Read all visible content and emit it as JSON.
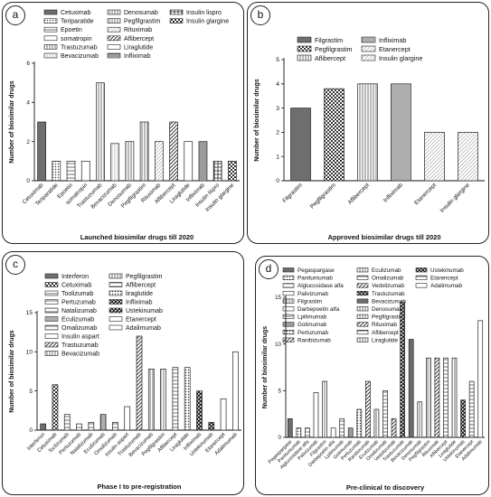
{
  "chart_data": [
    {
      "type": "bar",
      "panel_label": "a",
      "title": "",
      "xlabel": "Launched biosimilar drugs till 2020",
      "ylabel": "Number of biosimilar drugs",
      "ylim": [
        0,
        6
      ],
      "yticks": [
        0,
        2,
        4,
        6
      ],
      "grid": false,
      "legend_position": "top",
      "categories": [
        "Cetuximab",
        "Teriparatide",
        "Epoetin",
        "somatropin",
        "Trastuzumab",
        "Bevacizumab",
        "Denosumab",
        "Pegfilgrastim",
        "Rituximab",
        "Aflibercept",
        "Liraglutide",
        "Infliximab",
        "Insulin lispro",
        "Insulin glargine"
      ],
      "values": [
        3,
        1,
        1,
        1,
        5,
        1.9,
        2,
        3,
        2,
        3,
        2,
        2,
        1,
        1
      ],
      "patterns": [
        "solid-gray",
        "dots",
        "hlines",
        "none",
        "vlines",
        "vlines-light",
        "vlines",
        "vlines",
        "diag-light",
        "diag",
        "none",
        "hlines-dense",
        "grid",
        "check"
      ],
      "legend": [
        "Cetuximab",
        "Teriparatide",
        "Epoetin",
        "somatropin",
        "Trastuzumab",
        "Bevacizumab",
        "Denosumab",
        "Pegfilgrastim",
        "Rituximab",
        "Aflibercept",
        "Liraglutide",
        "Infliximab",
        "Insulin lispro",
        "Insulin glargine"
      ]
    },
    {
      "type": "bar",
      "panel_label": "b",
      "title": "",
      "xlabel": "Approved biosimilar drugs till 2020",
      "ylabel": "Number of biosimilar drugs",
      "ylim": [
        0,
        5
      ],
      "yticks": [
        0,
        1,
        2,
        3,
        4,
        5
      ],
      "grid": false,
      "legend_position": "top",
      "categories": [
        "Filgrastim",
        "Pegfilgrastim",
        "Aflibercept",
        "Infliximab",
        "Etanercept",
        "Insulin glargine"
      ],
      "values": [
        3,
        3.8,
        4,
        4,
        2,
        2
      ],
      "patterns": [
        "solid-gray",
        "check",
        "vlines",
        "vlines-dense",
        "diag-light",
        "diag-light"
      ],
      "legend": [
        "Filgrastim",
        "Pegfilgrastim",
        "Aflibercept",
        "Infliximab",
        "Etanercept",
        "Insulin glargine"
      ]
    },
    {
      "type": "bar",
      "panel_label": "c",
      "title": "",
      "xlabel": "Phase I to pre-registration",
      "ylabel": "Number of biosimilar drugs",
      "ylim": [
        0,
        15
      ],
      "yticks": [
        0,
        5,
        10,
        15
      ],
      "grid": false,
      "legend_position": "top",
      "categories": [
        "Interferon",
        "Cetuximab",
        "Toclizumab",
        "Pertuzumab",
        "Natalizumab",
        "Eculizumab",
        "Omalizumab",
        "Insulin aspart",
        "Trastuzumab",
        "Bevacizumab",
        "Pegfilgrastim",
        "Aflibercept",
        "Liraglutide",
        "Infliximab",
        "Ustekinumab",
        "Etanercept",
        "Adalimumab"
      ],
      "values": [
        0.8,
        5.8,
        2,
        0.8,
        1,
        2,
        1,
        3,
        12,
        7.8,
        7.8,
        8,
        8,
        5,
        1,
        4,
        10
      ],
      "patterns": [
        "solid-gray",
        "check",
        "hlines",
        "hlines",
        "hlines",
        "vlines-dense",
        "hlines",
        "none",
        "diag",
        "vlines",
        "vlines",
        "hlines",
        "dots",
        "check-dark",
        "check-dark",
        "none",
        "none"
      ],
      "legend": [
        "Interferon",
        "Cetuximab",
        "Toolizumab",
        "Pertuzumab",
        "Natalizumab",
        "Eculizumab",
        "Omalizumab",
        "Insulin aspart",
        "Trastuzumab",
        "Bevacizumab",
        "Pegfilgrastim",
        "Aflibercept",
        "liraglutide",
        "Infliximab",
        "Ustekinumab",
        "Etanercept",
        "Adalimumab"
      ]
    },
    {
      "type": "bar",
      "panel_label": "d",
      "title": "",
      "xlabel": "Pre-clinical to discovery",
      "ylabel": "Number of biosimilar drugs",
      "ylim": [
        0,
        15
      ],
      "yticks": [
        0,
        5,
        10,
        15
      ],
      "grid": false,
      "legend_position": "top",
      "categories": [
        "Pegaspargase",
        "Panitumumab",
        "Alglucosidase alfa",
        "Palivizumab",
        "Filgrastim",
        "Darbepoetin alfa",
        "Lpilimumab",
        "Golimumab",
        "Pertuzumab",
        "Ranibizumab",
        "Eculizumab",
        "Omalizumab",
        "Vedolizumab",
        "Trastuzumab",
        "Bevacizumab",
        "Denosumab",
        "Pegfilgrastim",
        "Rituximab",
        "Aflibercept",
        "Liraglutide",
        "Ustekinumab",
        "Etanercept",
        "Adalimumab"
      ],
      "values": [
        2,
        1,
        1,
        4.8,
        6,
        1,
        2,
        1,
        3,
        6,
        3,
        5,
        2,
        14.5,
        10.5,
        3.8,
        8.5,
        8.5,
        8.5,
        8.5,
        4,
        6,
        12.5
      ],
      "patterns": [
        "solid-gray",
        "dots",
        "hlines",
        "none",
        "vlines",
        "none",
        "hlines",
        "hlines-dense",
        "dots",
        "diag",
        "vlines",
        "hlines",
        "diag",
        "check-dark",
        "solid-gray",
        "vlines",
        "vlines",
        "diag",
        "hlines",
        "vlines",
        "check-dark",
        "hlines",
        "none"
      ],
      "legend": [
        "Pegaspargase",
        "Panitumumab",
        "Alglucosidase alfa",
        "Palivizumab",
        "Filgrastim",
        "Darbepoetin alfa",
        "Lpilimumab",
        "Golimumab",
        "Pertuzumab",
        "Ranibizumab",
        "Eculizumab",
        "Omalizumab",
        "Vedolizumab",
        "Trastuzumab",
        "Bevacizumab",
        "Denosumab",
        "Pegfilgrastim",
        "Rituximab",
        "Aflibercept",
        "Liraglutide",
        "Ustekinumab",
        "Etanercept",
        "Adalimumab"
      ]
    }
  ]
}
